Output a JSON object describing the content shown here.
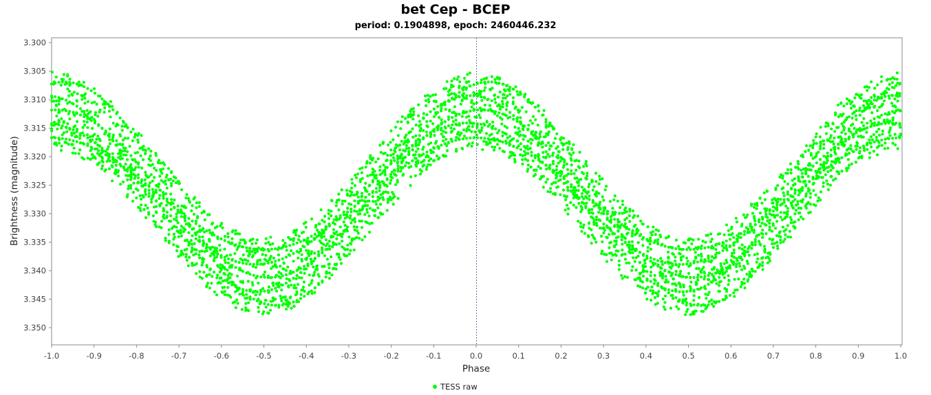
{
  "chart_data": {
    "type": "scatter",
    "title": "bet Cep - BCEP",
    "subtitle": "period: 0.1904898, epoch: 2460446.232",
    "xlabel": "Phase",
    "ylabel": "Brightness (magnitude)",
    "xlim": [
      -1.0,
      1.0
    ],
    "ylim": [
      3.3,
      3.352
    ],
    "y_inverted": true,
    "x_ticks": [
      "-1.0",
      "-0.9",
      "-0.8",
      "-0.7",
      "-0.6",
      "-0.5",
      "-0.4",
      "-0.3",
      "-0.2",
      "-0.1",
      "0.0",
      "0.1",
      "0.2",
      "0.3",
      "0.4",
      "0.5",
      "0.6",
      "0.7",
      "0.8",
      "0.9",
      "1.0"
    ],
    "y_ticks": [
      "3.300",
      "3.305",
      "3.310",
      "3.315",
      "3.320",
      "3.325",
      "3.330",
      "3.335",
      "3.340",
      "3.345",
      "3.350"
    ],
    "grid": false,
    "zero_line": true,
    "legend_position": "bottom",
    "series": [
      {
        "name": "TESS raw",
        "color": "#00ff00",
        "model": {
          "description_free": true,
          "mean": 3.3265,
          "fundamental_amplitude": 0.0145,
          "fundamental_peak_phase": 0.0,
          "band_min_offset": -0.0068,
          "band_max_offset": 0.0068,
          "stripe_amplitudes": [
            0.0196,
            0.0172,
            0.0147,
            0.0124,
            0.0098
          ],
          "stripe_phase_shifts": [
            0.03,
            -0.015,
            0.012,
            -0.02,
            0.0
          ],
          "phase_step": 0.006
        }
      }
    ]
  }
}
